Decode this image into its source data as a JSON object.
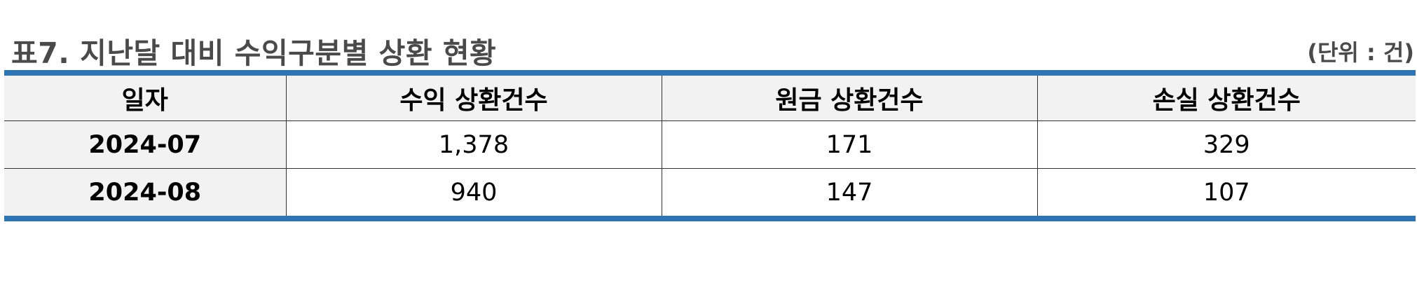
{
  "title": "표7. 지난달 대비 수익구분별 상환 현황",
  "unit": "(단위 : 건)",
  "table": {
    "headers": [
      "일자",
      "수익 상환건수",
      "원금 상환건수",
      "손실 상환건수"
    ],
    "rows": [
      {
        "date": "2024-07",
        "profit": "1,378",
        "principal": "171",
        "loss": "329"
      },
      {
        "date": "2024-08",
        "profit": "940",
        "principal": "147",
        "loss": "107"
      }
    ]
  },
  "colors": {
    "accent_rule": "#2e75b6",
    "header_bg": "#f2f2f2",
    "title_text": "#4a4a4a"
  }
}
